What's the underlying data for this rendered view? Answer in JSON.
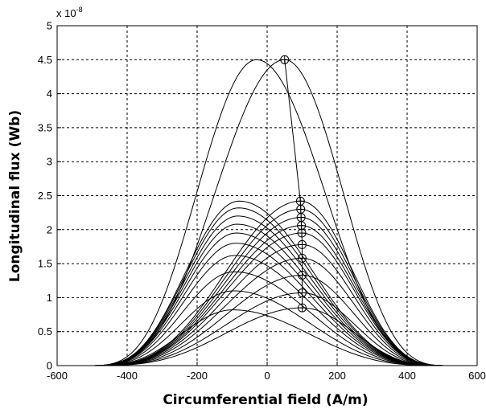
{
  "chart_data": {
    "type": "line",
    "title": "",
    "xlabel": "Circumferential field (A/m)",
    "ylabel": "Longitudinal flux (Wb)",
    "exponent_label": "x 10",
    "exponent_power": "-8",
    "xlim": [
      -600,
      600
    ],
    "ylim": [
      0,
      5
    ],
    "x_ticks": [
      "-600",
      "-400",
      "-200",
      "0",
      "200",
      "400",
      "600"
    ],
    "y_ticks": [
      "0",
      "0.5",
      "1",
      "1.5",
      "2",
      "2.5",
      "3",
      "3.5",
      "4",
      "4.5",
      "5"
    ],
    "grid": true,
    "legend": "none",
    "curve_span": [
      -520,
      530
    ],
    "series": [
      {
        "peak_x": 50,
        "peak_y": 4.5
      },
      {
        "peak_x": -30,
        "peak_y": 4.5
      },
      {
        "peak_x": 95,
        "peak_y": 2.42
      },
      {
        "peak_x": 96,
        "peak_y": 2.3
      },
      {
        "peak_x": 97,
        "peak_y": 2.18
      },
      {
        "peak_x": 98,
        "peak_y": 2.06
      },
      {
        "peak_x": 99,
        "peak_y": 1.95
      },
      {
        "peak_x": 100,
        "peak_y": 1.78
      },
      {
        "peak_x": 100,
        "peak_y": 1.58
      },
      {
        "peak_x": 100,
        "peak_y": 1.33
      },
      {
        "peak_x": 100,
        "peak_y": 1.07
      },
      {
        "peak_x": 100,
        "peak_y": 0.85
      },
      {
        "peak_x": -80,
        "peak_y": 2.42
      },
      {
        "peak_x": -82,
        "peak_y": 2.32
      },
      {
        "peak_x": -84,
        "peak_y": 2.2
      },
      {
        "peak_x": -86,
        "peak_y": 2.08
      },
      {
        "peak_x": -88,
        "peak_y": 1.95
      },
      {
        "peak_x": -90,
        "peak_y": 1.8
      },
      {
        "peak_x": -92,
        "peak_y": 1.62
      },
      {
        "peak_x": -94,
        "peak_y": 1.38
      },
      {
        "peak_x": -96,
        "peak_y": 1.1
      },
      {
        "peak_x": -98,
        "peak_y": 0.82
      }
    ],
    "peak_markers": [
      {
        "x": 50,
        "y": 4.5
      },
      {
        "x": 95,
        "y": 2.42
      },
      {
        "x": 96,
        "y": 2.3
      },
      {
        "x": 97,
        "y": 2.18
      },
      {
        "x": 98,
        "y": 2.06
      },
      {
        "x": 99,
        "y": 1.95
      },
      {
        "x": 100,
        "y": 1.78
      },
      {
        "x": 100,
        "y": 1.58
      },
      {
        "x": 100,
        "y": 1.33
      },
      {
        "x": 100,
        "y": 1.07
      },
      {
        "x": 100,
        "y": 0.85
      }
    ]
  }
}
